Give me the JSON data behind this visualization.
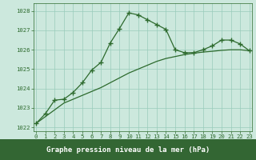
{
  "title": "Graphe pression niveau de la mer (hPa)",
  "xlabel_hours": [
    0,
    1,
    2,
    3,
    4,
    5,
    6,
    7,
    8,
    9,
    10,
    11,
    12,
    13,
    14,
    15,
    16,
    17,
    18,
    19,
    20,
    21,
    22,
    23
  ],
  "line1_x": [
    0,
    1,
    2,
    3,
    4,
    5,
    6,
    7,
    8,
    9,
    10,
    11,
    12,
    13,
    14,
    15,
    16,
    17,
    18,
    19,
    20,
    21,
    22,
    23
  ],
  "line1_y": [
    1022.2,
    1022.7,
    1023.4,
    1023.45,
    1023.8,
    1024.3,
    1024.95,
    1025.35,
    1026.35,
    1027.1,
    1027.9,
    1027.8,
    1027.55,
    1027.3,
    1027.05,
    1026.0,
    1025.85,
    1025.85,
    1026.0,
    1026.2,
    1026.5,
    1026.5,
    1026.3,
    1025.95
  ],
  "line2_x": [
    0,
    1,
    2,
    3,
    4,
    5,
    6,
    7,
    8,
    9,
    10,
    11,
    12,
    13,
    14,
    15,
    16,
    17,
    18,
    19,
    20,
    21,
    22,
    23
  ],
  "line2_y": [
    1022.2,
    1022.55,
    1022.9,
    1023.25,
    1023.45,
    1023.65,
    1023.85,
    1024.05,
    1024.3,
    1024.55,
    1024.8,
    1025.0,
    1025.2,
    1025.4,
    1025.55,
    1025.65,
    1025.75,
    1025.82,
    1025.88,
    1025.92,
    1025.97,
    1026.0,
    1026.0,
    1025.95
  ],
  "line_color": "#2d6a2d",
  "marker": "+",
  "markersize": 4,
  "markeredgewidth": 1.0,
  "ylim": [
    1021.8,
    1028.4
  ],
  "yticks": [
    1022,
    1023,
    1024,
    1025,
    1026,
    1027,
    1028
  ],
  "xlim": [
    -0.3,
    23.3
  ],
  "bg_color": "#cce8dd",
  "grid_color": "#99ccbb",
  "title_bg": "#336633",
  "title_color": "#ffffff",
  "title_fontsize": 6.5,
  "tick_fontsize": 5.2,
  "linewidth": 0.9
}
